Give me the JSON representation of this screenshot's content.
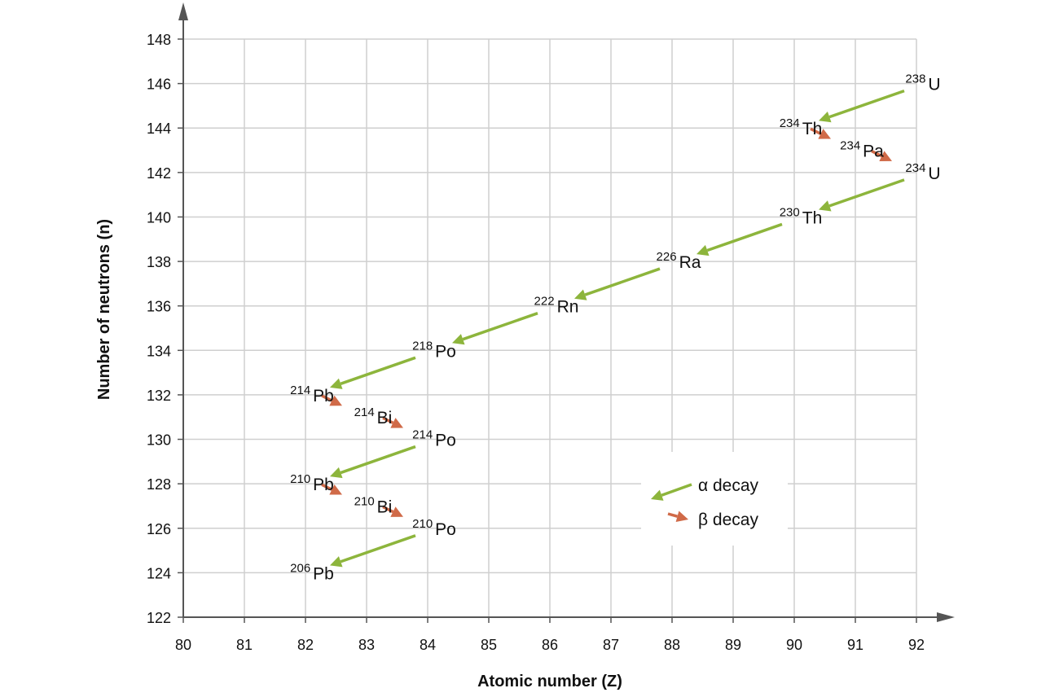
{
  "chart_data": {
    "type": "decay-chain",
    "xlabel": "Atomic number (Z)",
    "ylabel": "Number of neutrons (n)",
    "xlim": [
      80,
      92
    ],
    "xticks": [
      80,
      81,
      82,
      83,
      84,
      85,
      86,
      87,
      88,
      89,
      90,
      91,
      92
    ],
    "ylim": [
      122,
      148
    ],
    "yticks": [
      122,
      124,
      126,
      128,
      130,
      132,
      134,
      136,
      138,
      140,
      142,
      144,
      146,
      148
    ],
    "grid": true,
    "legend": "lower right",
    "series": [
      {
        "name": "α decay",
        "color": "#8db53c"
      },
      {
        "name": "β decay",
        "color": "#d06a48"
      }
    ],
    "nuclides": [
      {
        "mass": 238,
        "symbol": "U",
        "z": 92,
        "n": 146
      },
      {
        "mass": 234,
        "symbol": "Th",
        "z": 90,
        "n": 144
      },
      {
        "mass": 234,
        "symbol": "Pa",
        "z": 91,
        "n": 143
      },
      {
        "mass": 234,
        "symbol": "U",
        "z": 92,
        "n": 142
      },
      {
        "mass": 230,
        "symbol": "Th",
        "z": 90,
        "n": 140
      },
      {
        "mass": 226,
        "symbol": "Ra",
        "z": 88,
        "n": 138
      },
      {
        "mass": 222,
        "symbol": "Rn",
        "z": 86,
        "n": 136
      },
      {
        "mass": 218,
        "symbol": "Po",
        "z": 84,
        "n": 134
      },
      {
        "mass": 214,
        "symbol": "Pb",
        "z": 82,
        "n": 132
      },
      {
        "mass": 214,
        "symbol": "Bi",
        "z": 83,
        "n": 131
      },
      {
        "mass": 214,
        "symbol": "Po",
        "z": 84,
        "n": 130
      },
      {
        "mass": 210,
        "symbol": "Pb",
        "z": 82,
        "n": 128
      },
      {
        "mass": 210,
        "symbol": "Bi",
        "z": 83,
        "n": 127
      },
      {
        "mass": 210,
        "symbol": "Po",
        "z": 84,
        "n": 126
      },
      {
        "mass": 206,
        "symbol": "Pb",
        "z": 82,
        "n": 124
      }
    ]
  }
}
